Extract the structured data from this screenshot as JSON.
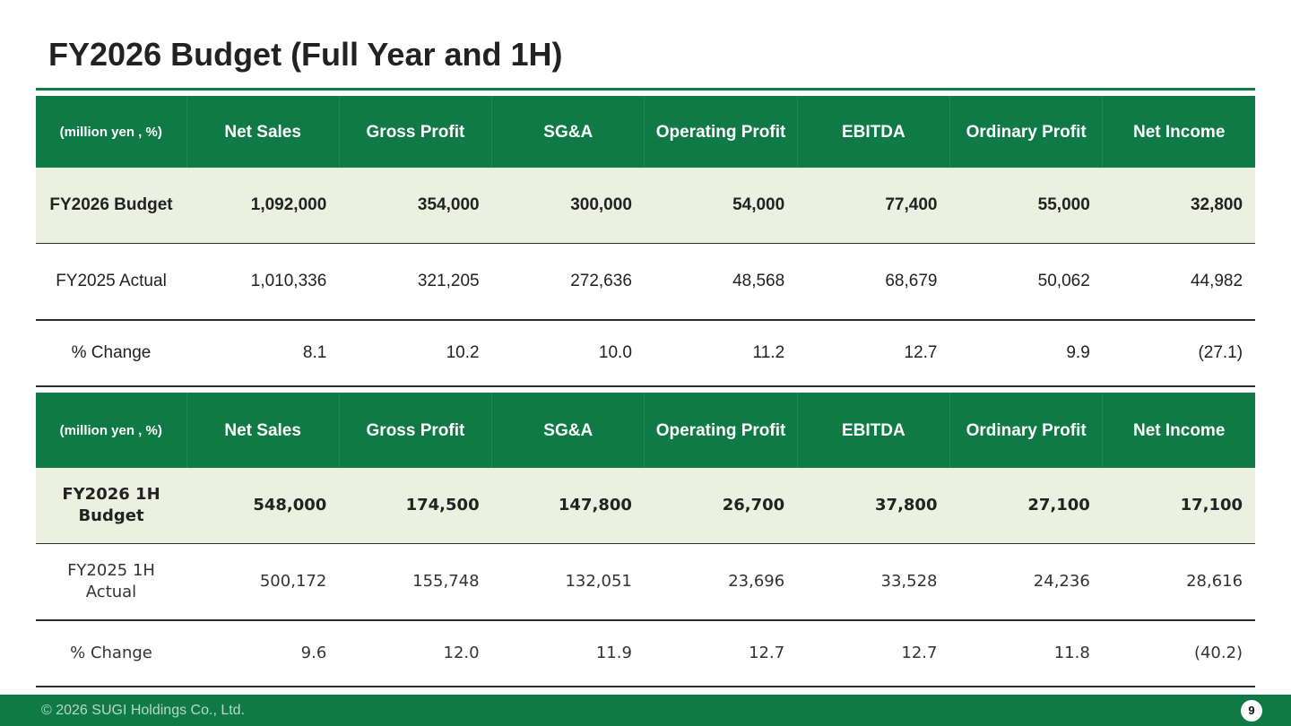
{
  "title": "FY2026 Budget (Full Year and 1H)",
  "colors": {
    "accent": "#0f7a46",
    "budget_row_bg": "#ebf0e1"
  },
  "table_full_year": {
    "headers": [
      "(million yen , %)",
      "Net Sales",
      "Gross Profit",
      "SG&A",
      "Operating Profit",
      "EBITDA",
      "Ordinary Profit",
      "Net Income"
    ],
    "rows": [
      {
        "label": "FY2026 Budget",
        "values": [
          "1,092,000",
          "354,000",
          "300,000",
          "54,000",
          "77,400",
          "55,000",
          "32,800"
        ]
      },
      {
        "label": "FY2025 Actual",
        "values": [
          "1,010,336",
          "321,205",
          "272,636",
          "48,568",
          "68,679",
          "50,062",
          "44,982"
        ]
      },
      {
        "label": "% Change",
        "values": [
          "8.1",
          "10.2",
          "10.0",
          "11.2",
          "12.7",
          "9.9",
          "(27.1)"
        ]
      }
    ]
  },
  "table_1h": {
    "headers": [
      "(million yen , %)",
      "Net Sales",
      "Gross Profit",
      "SG&A",
      "Operating Profit",
      "EBITDA",
      "Ordinary Profit",
      "Net Income"
    ],
    "rows": [
      {
        "label": "FY2026 1H Budget",
        "values": [
          "548,000",
          "174,500",
          "147,800",
          "26,700",
          "37,800",
          "27,100",
          "17,100"
        ]
      },
      {
        "label": "FY2025 1H Actual",
        "values": [
          "500,172",
          "155,748",
          "132,051",
          "23,696",
          "33,528",
          "24,236",
          "28,616"
        ]
      },
      {
        "label": "% Change",
        "values": [
          "9.6",
          "12.0",
          "11.9",
          "12.7",
          "12.7",
          "11.8",
          "(40.2)"
        ]
      }
    ]
  },
  "footer": {
    "copyright": "© 2026 SUGI Holdings Co., Ltd.",
    "page_number": "9"
  }
}
